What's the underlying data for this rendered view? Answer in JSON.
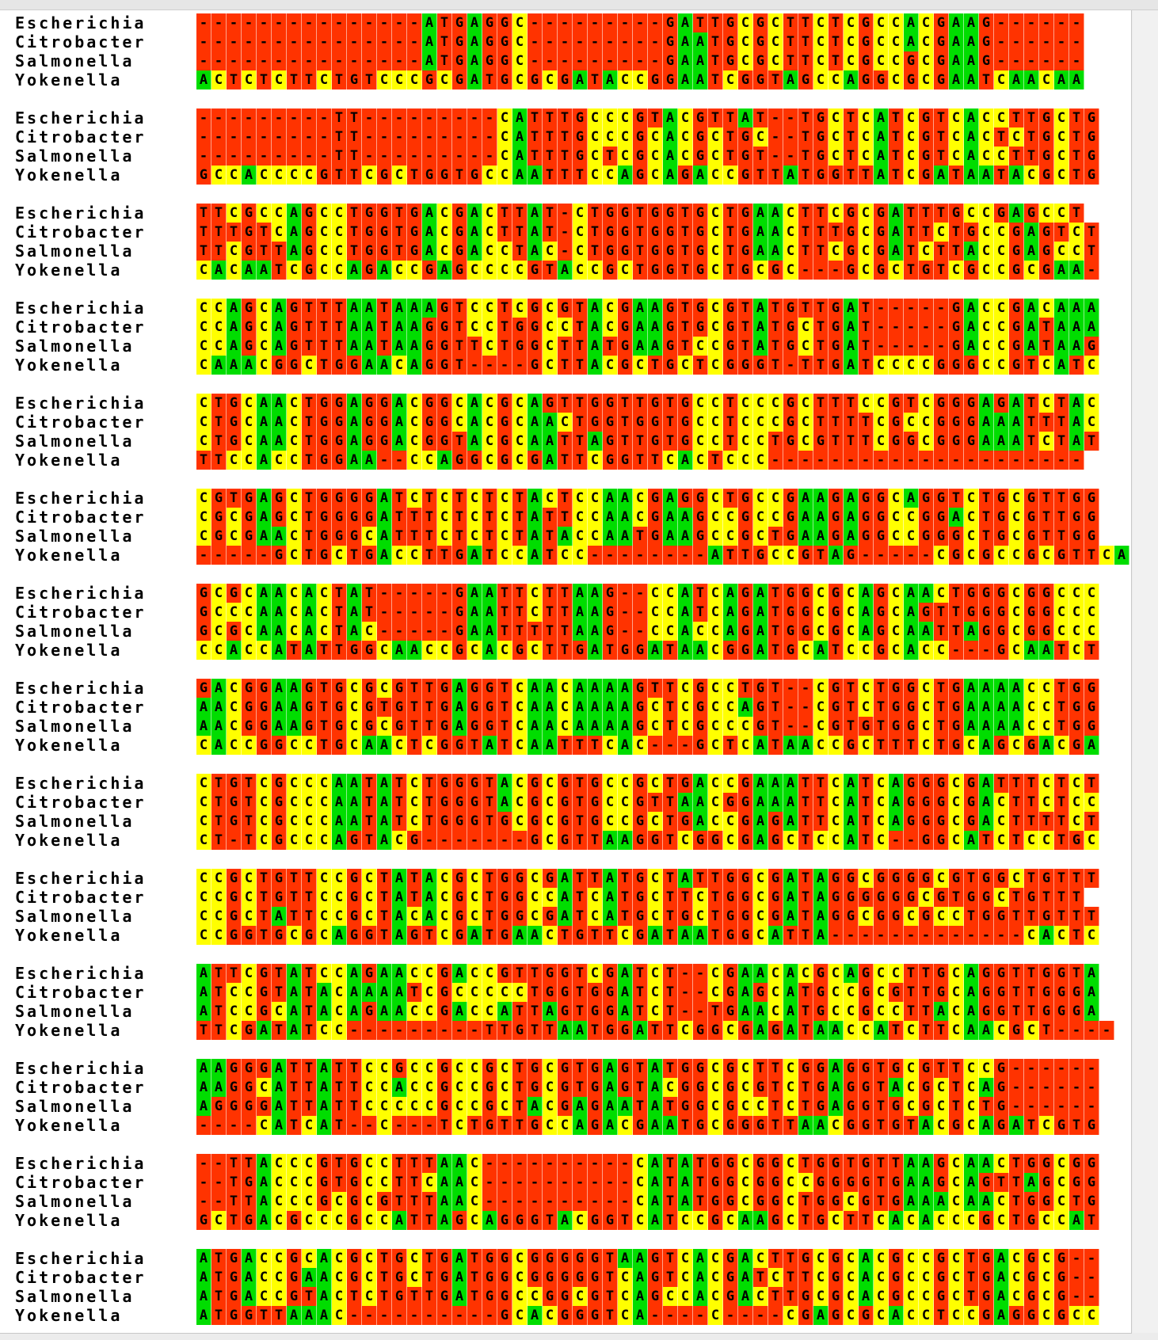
{
  "alignment": {
    "colors": {
      "A": "#00dd00",
      "C": "#ffff00",
      "G": "#ff3300",
      "T": "#ff3300",
      "-": "#ff3300"
    },
    "blocks": [
      {
        "rows": [
          {
            "name": "Escherichia",
            "seq": "---------------ATGAGGC---------GATTGCGCTTCTCGCCACGAAG------"
          },
          {
            "name": "Citrobacter",
            "seq": "---------------ATGAGGC---------GAATGCGCTTCTCGCCACGAAG------"
          },
          {
            "name": "Salmonella",
            "seq": "---------------ATGAGGC---------GAATGCGCTTCTCGCCGCGAAG------"
          },
          {
            "name": "Yokenella",
            "seq": "ACTCTCTTCTGTCCCGCGATGCGCGATACCGGAATCGGTAGCCAGGCGCGAATCAACAA"
          }
        ]
      },
      {
        "rows": [
          {
            "name": "Escherichia",
            "seq": "---------TT---------CATTTGCCCGTACGTTAT--TGCTCATCGTCACCTTGCTG"
          },
          {
            "name": "Citrobacter",
            "seq": "---------TT---------CATTTGCCCGCACGCTGC--TGCTCATCGTCACTCTGCTG"
          },
          {
            "name": "Salmonella",
            "seq": "---------TT---------CATTTGCTCGCACGCTGT--TGCTCATCGTCACCTTGCTG"
          },
          {
            "name": "Yokenella",
            "seq": "GCCACCCCGTTCGCTGGTGCCAATTTCCAGCAGACCGTTATGGTTATCGATAATACGCTG"
          }
        ]
      },
      {
        "rows": [
          {
            "name": "Escherichia",
            "seq": "TTCGCCAGCCTGGTGACGACTTAT-CTGGTGGTGCTGAACTTCGCGATTTGCCGAGCCT"
          },
          {
            "name": "Citrobacter",
            "seq": "TTTGTCAGCCTGGTGACGACTTAT-CTGGTGGTGCTGAACTTTGCGATTCTGCCGAGTCT"
          },
          {
            "name": "Salmonella",
            "seq": "TTCGTTAGCCTGGTGACGACCTAC-CTGGTGGTGCTGAACTTCGCGATCTTACCGAGCCT"
          },
          {
            "name": "Yokenella",
            "seq": "CACAATCGCCAGACCGAGCCCCGTACCGCTGGTGCTGCGC---GCGCTGTCGCCGCGAA-"
          }
        ]
      },
      {
        "rows": [
          {
            "name": "Escherichia",
            "seq": "CCAGCAGTTTAATAAAGTCCTCGCGTACGAAGTGCGTATGTTGAT-----GACCGACAAA"
          },
          {
            "name": "Citrobacter",
            "seq": "CCAGCAGTTTAATAAGGTCCTGGCCTACGAAGTGCGTATGCTGAT-----GACCGATAAA"
          },
          {
            "name": "Salmonella",
            "seq": "CCAGCAGTTTAATAAGGTTCTGGCTTATGAAGTCCGTATGCTGAT-----GACCGATAAG"
          },
          {
            "name": "Yokenella",
            "seq": "CAAACGGCTGGAACAGGT----GCTTACGCTGCTCGGGT-TTGATCCCCGGGCCGTCATC"
          }
        ]
      },
      {
        "rows": [
          {
            "name": "Escherichia",
            "seq": "CTGCAACTGGAGGACGGCACGCAGTTGGTTGTGCCTCCCGCTTTCCGTCGGGAGATCTAC"
          },
          {
            "name": "Citrobacter",
            "seq": "CTGCAACTGGAGGACGGCACGCAACTGGTGGTGCCTCCCGCTTTTCGCCGGGAAATTTAC"
          },
          {
            "name": "Salmonella",
            "seq": "CTGCAACTGGAGGACGGTACGCAATTAGTTGTGCCTCCTGCGTTTCGGCGGGAAATCTAT"
          },
          {
            "name": "Yokenella",
            "seq": "TTCCACCTGGAA--CCAGGCGCGATTCGGTTCACTCCC---------------------"
          }
        ]
      },
      {
        "rows": [
          {
            "name": "Escherichia",
            "seq": "CGTGAGCTGGGGATCTCTCTCTACTCCAACGAGGCTGCCGAAGAGGCAGGTCTGCGTTGG"
          },
          {
            "name": "Citrobacter",
            "seq": "CGCGAGCTGGGGATTTCTCTCTATTCCAACGAAGCCGCCGAAGAGGCCGGACTGCGTTGG"
          },
          {
            "name": "Salmonella",
            "seq": "CGCGAACTGGGCATTTCTCTCTATACCAATGAAGCCGCTGAAGAGGCCGGGCTGCGTTGG"
          },
          {
            "name": "Yokenella",
            "seq": "-----GCTGCTGACCTTGATCCATCC--------ATTGCCGTAG-----CGCGCCGCGTTCA"
          }
        ]
      },
      {
        "rows": [
          {
            "name": "Escherichia",
            "seq": "GCGCAACACTAT-----GAATTCTTAAG--CCATCAGATGGCGCAGCAACTGGGCGGCCC"
          },
          {
            "name": "Citrobacter",
            "seq": "GCCCAACACTAT-----GAATTCTTAAG--CCATCAGATGGCGCAGCAGTTGGGCGGCCC"
          },
          {
            "name": "Salmonella",
            "seq": "GCGCAACACTAC-----GAATTTTTAAG--CCACCAGATGGCGCAGCAATTAGGCGGCCC"
          },
          {
            "name": "Yokenella",
            "seq": "CCACCATATTGGCAACCGCACGCTTGATGGATAACGGATGCATCCGCACC---GCAATCT"
          }
        ]
      },
      {
        "rows": [
          {
            "name": "Escherichia",
            "seq": "GACGGAAGTGCGCGTTGAGGTCAACAAAAGTTCGCCTGT--CGTCTGGCTGAAAACCTGG"
          },
          {
            "name": "Citrobacter",
            "seq": "AACGGAAGTGCGTGTTGAGGTCAACAAAAGCTCGCCAGT--CGTCTGGCTGAAAACCTGG"
          },
          {
            "name": "Salmonella",
            "seq": "AACGGAAGTGCGCGTTGAGGTCAACAAAAGCTCGCCCGT--CGTGTGGCTGAAAACCTGG"
          },
          {
            "name": "Yokenella",
            "seq": "CACCGGCCTGCAACTCGGTATCAATTTCAC---GCTCATAACCGCTTTCTGCAGCGACGA"
          }
        ]
      },
      {
        "rows": [
          {
            "name": "Escherichia",
            "seq": "CTGTCGCCCAATATCTGGGTACGCGTGCCGCTGACCGAAATTCATCAGGGCGATTTCTCT"
          },
          {
            "name": "Citrobacter",
            "seq": "CTGTCGCCCAATATCTGGGTACGCGTGCCGTTAACGGAAATTCATCAGGGCGACTTCTCC"
          },
          {
            "name": "Salmonella",
            "seq": "CTGTCGCCCAATATCTGGGTGCGCGTGCCGCTGACCGAGATTCATCAGGGCGACTTTTCT"
          },
          {
            "name": "Yokenella",
            "seq": "CT-TCGCCCAGTACG-------GCGTTAAGGTCGGCGAGCTCCATC--GGCATCTCCTGC"
          }
        ]
      },
      {
        "rows": [
          {
            "name": "Escherichia",
            "seq": "CCGCTGTTCCGCTATACGCTGGCGATTATGCTATTGGCGATAGGCGGGGCGTGGCTGTTT"
          },
          {
            "name": "Citrobacter",
            "seq": "CCGCTGTTCCGCTATACGCTGGCCATCATGCTTCTGGCGATAGGGGGGCGTGGCTGTTT"
          },
          {
            "name": "Salmonella",
            "seq": "CCGCTATTCCGCTACACGCTGGCGATCATGCTGCTGGCGATAGGCGGCGCCTGGTTGTTT"
          },
          {
            "name": "Yokenella",
            "seq": "CCGGTGCGCAGGTAGTCGATGAACTGTTCGATAATGGCATTA-------------CACTC"
          }
        ]
      },
      {
        "rows": [
          {
            "name": "Escherichia",
            "seq": "ATTCGTATCCAGAACCGACCGTTGGTCGATCT--CGAACACGCAGCCTTGCAGGTTGGTA"
          },
          {
            "name": "Citrobacter",
            "seq": "ATCCGTATACAAAATCGCCCCCTGGTGGATCT--CGAGCATGCCGCGTTGCAGGTTGGGA"
          },
          {
            "name": "Salmonella",
            "seq": "ATCCGCATACAGAACCGACCATTAGTGGATCT--TGAACATGCCGCCTTACAGGTTGGGA"
          },
          {
            "name": "Yokenella",
            "seq": "TTCGATATCC---------TTGTTAATGGATTCGGCGAGATAACCATCTTCAACGCT----"
          }
        ]
      },
      {
        "rows": [
          {
            "name": "Escherichia",
            "seq": "AAGGGATTATTCCGCCGCCGCTGCGTGAGTATGGCGCTTCGGAGGTGCGTTCCG------"
          },
          {
            "name": "Citrobacter",
            "seq": "AAGGCATTATTCCACCGCCGCTGCGTGAGTACGGCGCGTCTGAGGTACGCTCAG------"
          },
          {
            "name": "Salmonella",
            "seq": "AGGGGATTATTCCCCCGCCGCTACGAGAATATGGCGCCTCTGAGGTGCGCTCTG------"
          },
          {
            "name": "Yokenella",
            "seq": "----CATCAT--C---TCTGTTGCCAGACGAATGCGGGTTAACGGTGTACGCAGATCGTG"
          }
        ]
      },
      {
        "rows": [
          {
            "name": "Escherichia",
            "seq": "--TTACCCGTGCCTTTAAC----------CATATGGCGGCTGGTGTTAAGCAACTGGCGG"
          },
          {
            "name": "Citrobacter",
            "seq": "--TGACCCGTGCCTTCAAC----------CATATGGCGGCCGGGGTGAAGCAGTTAGCGG"
          },
          {
            "name": "Salmonella",
            "seq": "--TTACCCGCGCGTTTAAC----------CATATGGCGGCTGGCGTGAAACAACTGGCTG"
          },
          {
            "name": "Yokenella",
            "seq": "GCTGACGCCCGCCATTAGCAGGGTACGGTCATCCGCAAGCTGCTTCACACCCGCTGCCAT"
          }
        ]
      },
      {
        "rows": [
          {
            "name": "Escherichia",
            "seq": "ATGACCGCACGCTGCTGATGGCGGGGGTAAGTCACGACTTGCGCACGCCGCTGACGCG--"
          },
          {
            "name": "Citrobacter",
            "seq": "ATGACCGAACGCTGCTGATGGCGGGGGTCAGTCACGATCTTCGCACGCCGCTGACGCG--"
          },
          {
            "name": "Salmonella",
            "seq": "ATGACCGTACTCTGTTGATGGCCGGCGTCAGCCACGACTTGCGCACGCCGCTGACGCG--"
          },
          {
            "name": "Yokenella",
            "seq": "ATGGTTAAAC----------GCACGGGTCA----C----CGAGCGCACCTCCGAGGCGCC"
          }
        ]
      }
    ]
  }
}
